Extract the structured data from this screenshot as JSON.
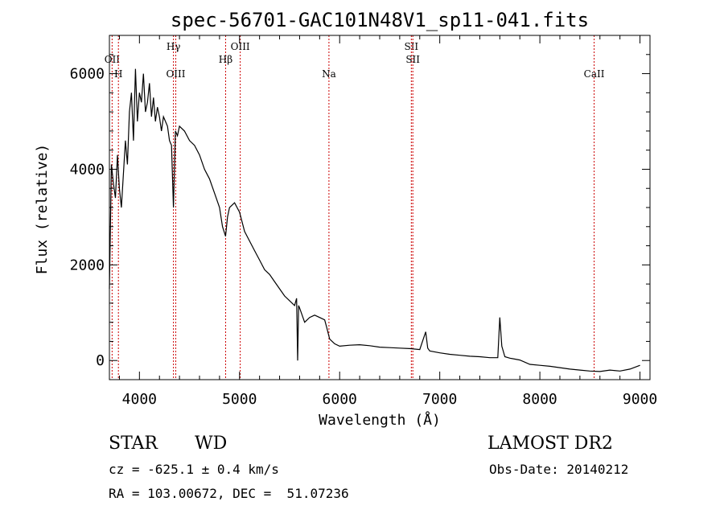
{
  "chart_data": {
    "type": "line",
    "title": "spec-56701-GAC101N48V1_sp11-041.fits",
    "xlabel": "Wavelength (Å)",
    "ylabel": "Flux (relative)",
    "xlim": [
      3700,
      9100
    ],
    "ylim": [
      -400,
      6800
    ],
    "xticks": [
      4000,
      5000,
      6000,
      7000,
      8000,
      9000
    ],
    "yticks": [
      0,
      2000,
      4000,
      6000
    ],
    "line_color": "#000000",
    "marker_color": "#cc0000",
    "series": [
      {
        "x": [
          3700,
          3720,
          3740,
          3760,
          3780,
          3800,
          3820,
          3840,
          3860,
          3880,
          3900,
          3920,
          3940,
          3960,
          3980,
          4000,
          4020,
          4040,
          4060,
          4080,
          4100,
          4120,
          4140,
          4160,
          4180,
          4200,
          4220,
          4240,
          4260,
          4280,
          4300,
          4320,
          4340,
          4360,
          4380,
          4400,
          4450,
          4500,
          4550,
          4600,
          4650,
          4700,
          4750,
          4800,
          4830,
          4860,
          4880,
          4900,
          4950,
          5000,
          5050,
          5100,
          5150,
          5200,
          5250,
          5300,
          5350,
          5400,
          5450,
          5500,
          5550,
          5570,
          5580,
          5590,
          5600,
          5650,
          5700,
          5750,
          5800,
          5850,
          5870,
          5900,
          5950,
          6000,
          6100,
          6200,
          6300,
          6400,
          6500,
          6600,
          6700,
          6800,
          6860,
          6880,
          6900,
          7000,
          7100,
          7200,
          7300,
          7400,
          7500,
          7580,
          7600,
          7620,
          7650,
          7700,
          7800,
          7900,
          8000,
          8100,
          8200,
          8300,
          8400,
          8500,
          8600,
          8700,
          8800,
          8900,
          9000
        ],
        "y": [
          1500,
          4100,
          3700,
          3400,
          4300,
          3600,
          3200,
          3900,
          4600,
          4100,
          5200,
          5600,
          4600,
          6100,
          5000,
          5600,
          5400,
          6000,
          5200,
          5400,
          5800,
          5100,
          5500,
          5000,
          5300,
          5100,
          4800,
          5100,
          5000,
          4900,
          4600,
          4500,
          3200,
          4800,
          4700,
          4900,
          4800,
          4600,
          4500,
          4300,
          4000,
          3800,
          3500,
          3200,
          2800,
          2600,
          3000,
          3200,
          3300,
          3100,
          2700,
          2500,
          2300,
          2100,
          1900,
          1800,
          1650,
          1500,
          1350,
          1250,
          1150,
          1300,
          0,
          1150,
          1100,
          800,
          900,
          950,
          900,
          850,
          700,
          450,
          350,
          300,
          320,
          330,
          310,
          280,
          270,
          260,
          250,
          230,
          600,
          260,
          200,
          160,
          130,
          110,
          90,
          80,
          60,
          60,
          900,
          300,
          80,
          50,
          10,
          -80,
          -100,
          -120,
          -150,
          -180,
          -200,
          -220,
          -230,
          -200,
          -220,
          -180,
          -100
        ]
      }
    ],
    "line_markers": [
      {
        "label": "OII",
        "x": 3727,
        "row": "middle"
      },
      {
        "label": "H",
        "x": 3790,
        "row": "lower"
      },
      {
        "label": "Hγ",
        "x": 4340,
        "row": "top"
      },
      {
        "label": "OIII",
        "x": 4363,
        "row": "lower"
      },
      {
        "label": "Hβ",
        "x": 4861,
        "row": "middle"
      },
      {
        "label": "OIII",
        "x": 5007,
        "row": "top"
      },
      {
        "label": "Na",
        "x": 5893,
        "row": "lower"
      },
      {
        "label": "SII",
        "x": 6716,
        "row": "top"
      },
      {
        "label": "SII",
        "x": 6731,
        "row": "middle"
      },
      {
        "label": "CaII",
        "x": 8542,
        "row": "lower"
      }
    ]
  },
  "info": {
    "class_label": "STAR",
    "subclass": "WD",
    "survey": "LAMOST DR2",
    "redshift": "cz = -625.1 ± 0.4 km/s",
    "obs_date": "Obs-Date: 20140212",
    "coords": "RA = 103.00672, DEC =  51.07236"
  }
}
